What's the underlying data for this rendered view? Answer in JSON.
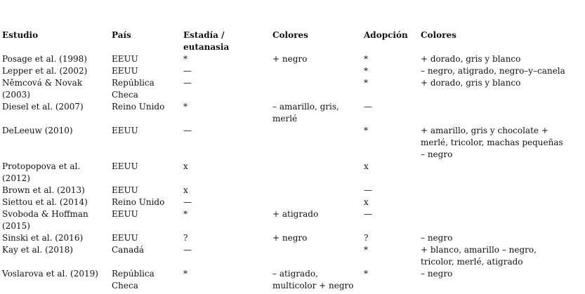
{
  "table": {
    "headers": [
      "Estudio",
      "País",
      "Estadía /\neutanasia",
      "Colores",
      "Adopción",
      "Colores"
    ],
    "rows": [
      [
        "Posage et al. (1998)",
        "EEUU",
        "*",
        "+ negro",
        "*",
        "+ dorado, gris y blanco"
      ],
      [
        "Lepper et al. (2002)",
        "EEUU",
        "—",
        "",
        "*",
        "– negro, atigrado, negro–y–canela"
      ],
      [
        "Němcová & Novak\n(2003)",
        "República\nCheca",
        "—",
        "",
        "*",
        "+ dorado, gris y blanco"
      ],
      [
        "Diesel et al. (2007)",
        "Reino Unido",
        "*",
        "– amarillo, gris,\nmerlé",
        "—",
        ""
      ],
      [
        "DeLeeuw (2010)",
        "EEUU",
        "—",
        "",
        "*",
        "+ amarillo, gris y chocolate +\nmerlé, tricolor, machas pequeñas\n– negro"
      ],
      [
        "Protopopova et al.\n(2012)",
        "EEUU",
        "x",
        "",
        "x",
        ""
      ],
      [
        "Brown et al. (2013)",
        "EEUU",
        "x",
        "",
        "—",
        ""
      ],
      [
        "Siettou et al. (2014)",
        "Reino Unido",
        "—",
        "",
        "x",
        ""
      ],
      [
        "Svoboda & Hoffman\n(2015)",
        "EEUU",
        "*",
        "+ atigrado",
        "—",
        ""
      ],
      [
        "Sinski et al. (2016)",
        "EEUU",
        "?",
        "+ negro",
        "?",
        "– negro"
      ],
      [
        "Kay et al. (2018)",
        "Canadá",
        "—",
        "",
        "*",
        "+ blanco, amarillo – negro,\ntricolor, merlé, atigrado"
      ],
      [
        "Voslarova et al. (2019)",
        "República\nCheca",
        "*",
        "– atigrado,\nmulticolor + negro",
        "*",
        "– negro"
      ]
    ]
  }
}
